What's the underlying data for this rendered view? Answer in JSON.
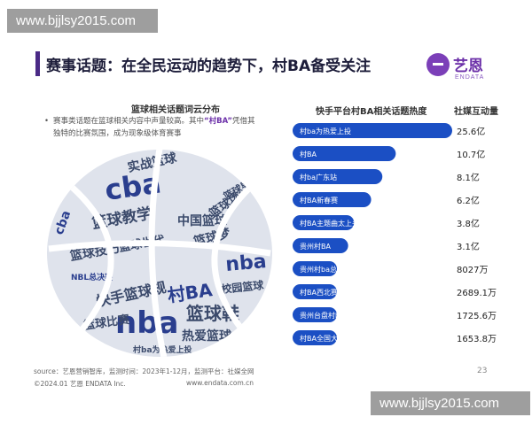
{
  "watermark": {
    "top": "www.bjjlsy2015.com",
    "bottom": "www.bjjlsy2015.com"
  },
  "header": {
    "title": "赛事话题：在全民运动的趋势下，村BA备受关注"
  },
  "logo": {
    "cn": "艺恩",
    "en": "ENDATA"
  },
  "wordcloud": {
    "title": "篮球相关话题词云分布",
    "note_bullet": "•",
    "note_part1": "赛事类话题在篮球相关内容中声量较高。其中",
    "note_highlight": "“村BA”",
    "note_part2": "凭借其",
    "note_line2": "独特的比赛氛围，成为现象级体育赛事",
    "words": [
      "实战篮球",
      "cba",
      "篮球教学",
      "中国篮球",
      "篮球梦",
      "篮球技巧",
      "cba",
      "nba",
      "快手篮球规",
      "村BA",
      "nba",
      "篮球鞋",
      "热爱篮球",
      "村ba为热爱上投",
      "篮球比赛",
      "NBL总决赛",
      "篮球世代",
      "篮球场",
      "校园篮球",
      "篮球男孩"
    ]
  },
  "chart_data": {
    "type": "bar",
    "orientation": "horizontal",
    "title": "快手平台村BA相关话题热度",
    "value_header": "社媒互动量",
    "categories": [
      "村ba为热爱上投",
      "村BA",
      "村ba广东站",
      "村BA新春赛",
      "村BA主题曲太上头了",
      "贵州村BA",
      "贵州村ba总决赛",
      "村BA西北赛区",
      "贵州台盘村ba",
      "村BA全国大赛"
    ],
    "values": [
      256000,
      107000,
      81000,
      62000,
      38000,
      31000,
      8027,
      2689.1,
      1725.6,
      1653.8
    ],
    "unit": "万",
    "value_labels": [
      "25.6亿",
      "10.7亿",
      "8.1亿",
      "6.2亿",
      "3.8亿",
      "3.1亿",
      "8027万",
      "2689.1万",
      "1725.6万",
      "1653.8万"
    ],
    "bar_color": "#1b4fc4"
  },
  "footer": {
    "source": "source：艺恩营销智库，监测时间：2023年1-12月，监测平台：社媒全网",
    "copyright": "©2024.01 艺恩 ENDATA Inc.",
    "url": "www.endata.com.cn",
    "page": "23"
  }
}
